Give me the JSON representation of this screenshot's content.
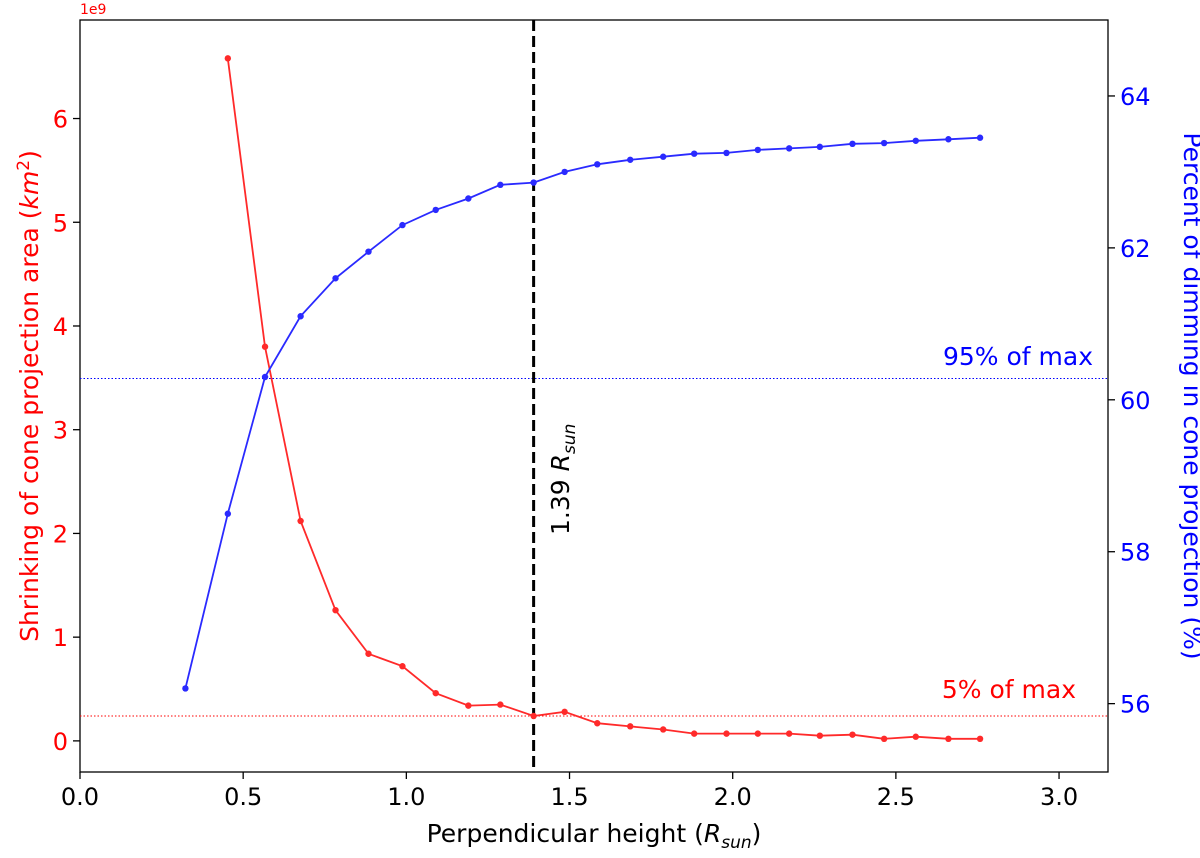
{
  "chart_data": {
    "type": "line",
    "xlabel": "Perpendicular height (",
    "xlabel_sym": "R",
    "xlabel_sub": "sun",
    "xlabel_end": ")",
    "xlim": [
      0.0,
      3.15
    ],
    "xticks": [
      "0.0",
      "0.5",
      "1.0",
      "1.5",
      "2.0",
      "2.5",
      "3.0"
    ],
    "left_axis": {
      "label": "Shrinking of cone projection area (",
      "label_unit": "km",
      "label_unit_exp": "2",
      "label_end": ")",
      "offset_text": "1e9",
      "color": "#ff0000",
      "ylim": [
        -0.3,
        6.95
      ],
      "ticks": [
        "0",
        "1",
        "2",
        "3",
        "4",
        "5",
        "6"
      ]
    },
    "right_axis": {
      "label": "Percent of dimming in cone projection (%)",
      "color": "#0000ff",
      "ylim": [
        55.1,
        65.0
      ],
      "ticks": [
        "56",
        "58",
        "60",
        "62",
        "64"
      ]
    },
    "series": [
      {
        "axis": "left",
        "color": "#ff2a2a",
        "x": [
          0.453,
          0.567,
          0.676,
          0.783,
          0.884,
          0.988,
          1.09,
          1.19,
          1.288,
          1.39,
          1.485,
          1.585,
          1.686,
          1.787,
          1.882,
          1.981,
          2.077,
          2.173,
          2.267,
          2.367,
          2.464,
          2.561,
          2.661,
          2.758
        ],
        "values": [
          6.58,
          3.8,
          2.12,
          1.26,
          0.84,
          0.72,
          0.46,
          0.34,
          0.35,
          0.24,
          0.28,
          0.17,
          0.14,
          0.11,
          0.07,
          0.07,
          0.07,
          0.07,
          0.05,
          0.06,
          0.02,
          0.04,
          0.02,
          0.02
        ]
      },
      {
        "axis": "right",
        "color": "#2a2aff",
        "x": [
          0.323,
          0.453,
          0.567,
          0.676,
          0.783,
          0.884,
          0.988,
          1.09,
          1.19,
          1.288,
          1.39,
          1.485,
          1.585,
          1.686,
          1.787,
          1.882,
          1.981,
          2.077,
          2.173,
          2.267,
          2.367,
          2.464,
          2.561,
          2.661,
          2.758
        ],
        "values": [
          56.2,
          58.5,
          60.3,
          61.1,
          61.6,
          61.95,
          62.3,
          62.5,
          62.65,
          62.83,
          62.86,
          63.0,
          63.1,
          63.16,
          63.2,
          63.24,
          63.25,
          63.29,
          63.31,
          63.33,
          63.37,
          63.38,
          63.41,
          63.43,
          63.45
        ]
      }
    ],
    "vline": {
      "x": 1.39,
      "label_num": "1.39 ",
      "label_sym": "R",
      "label_sub": "sun"
    },
    "hlines": [
      {
        "axis": "right",
        "y": 60.28,
        "color": "#0000ff",
        "label": "95% of max"
      },
      {
        "axis": "left",
        "y": 0.24,
        "color": "#ff0000",
        "label": "5% of max"
      }
    ]
  }
}
